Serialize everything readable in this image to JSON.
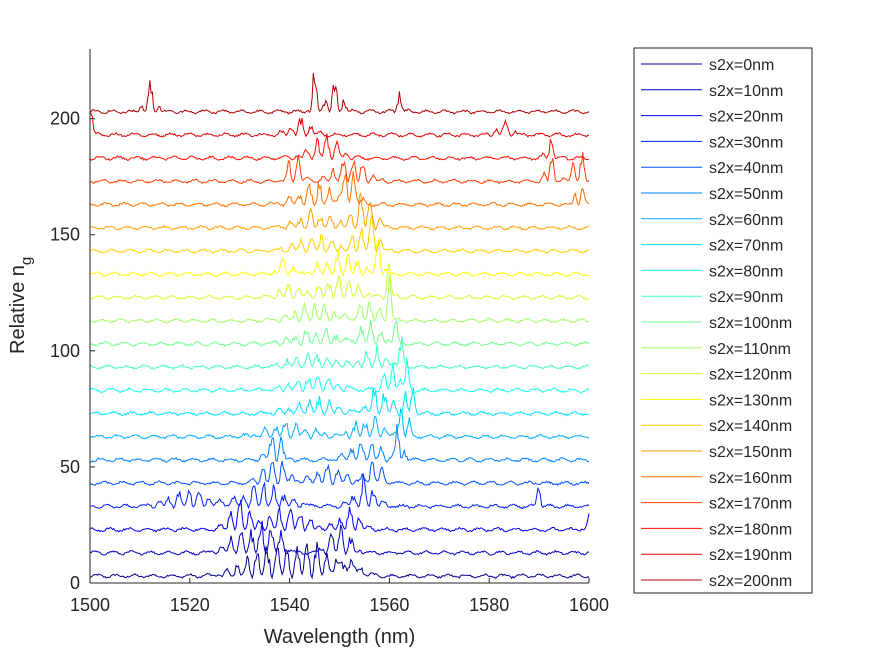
{
  "chart_data": {
    "type": "line",
    "title": "",
    "xlabel": "Wavelength (nm)",
    "ylabel_main": "Relative n",
    "ylabel_sub": "g",
    "xlim": [
      1500,
      1600
    ],
    "ylim": [
      0,
      230
    ],
    "xticks": [
      1500,
      1520,
      1540,
      1560,
      1580,
      1600
    ],
    "yticks": [
      0,
      50,
      100,
      150,
      200
    ],
    "grid": false,
    "legend_position": "outside-right",
    "series": [
      {
        "name": "s2x=0nm",
        "color": "#00008f",
        "baseline": 3,
        "features": [
          [
            1535,
            10,
            6
          ],
          [
            1545,
            12,
            6
          ],
          [
            1552,
            6,
            3
          ]
        ]
      },
      {
        "name": "s2x=10nm",
        "color": "#0000bf",
        "baseline": 13,
        "features": [
          [
            1530,
            8,
            4
          ],
          [
            1536,
            12,
            3
          ],
          [
            1550,
            10,
            3
          ]
        ]
      },
      {
        "name": "s2x=20nm",
        "color": "#0000ef",
        "baseline": 23,
        "features": [
          [
            1530,
            10,
            3
          ],
          [
            1540,
            9,
            5
          ],
          [
            1552,
            8,
            3
          ],
          [
            1600,
            5,
            1
          ]
        ]
      },
      {
        "name": "s2x=30nm",
        "color": "#0020ff",
        "baseline": 33,
        "features": [
          [
            1520,
            6,
            6
          ],
          [
            1535,
            8,
            6
          ],
          [
            1555,
            10,
            3
          ],
          [
            1590,
            8,
            0.6
          ]
        ]
      },
      {
        "name": "s2x=40nm",
        "color": "#0050ff",
        "baseline": 43,
        "features": [
          [
            1537,
            10,
            3
          ],
          [
            1548,
            6,
            5
          ],
          [
            1557,
            10,
            2
          ]
        ]
      },
      {
        "name": "s2x=50nm",
        "color": "#0080ff",
        "baseline": 53,
        "features": [
          [
            1537,
            12,
            2
          ],
          [
            1555,
            8,
            4
          ],
          [
            1562,
            18,
            1
          ]
        ]
      },
      {
        "name": "s2x=60nm",
        "color": "#00b0ff",
        "baseline": 63,
        "features": [
          [
            1540,
            6,
            6
          ],
          [
            1556,
            8,
            4
          ],
          [
            1563,
            20,
            1
          ]
        ]
      },
      {
        "name": "s2x=70nm",
        "color": "#00dfff",
        "baseline": 73,
        "features": [
          [
            1545,
            6,
            6
          ],
          [
            1558,
            10,
            3
          ],
          [
            1564,
            20,
            1
          ]
        ]
      },
      {
        "name": "s2x=80nm",
        "color": "#10ffef",
        "baseline": 83,
        "features": [
          [
            1545,
            6,
            6
          ],
          [
            1560,
            10,
            2
          ],
          [
            1563,
            14,
            1
          ]
        ]
      },
      {
        "name": "s2x=90nm",
        "color": "#40ffbf",
        "baseline": 93,
        "features": [
          [
            1545,
            6,
            6
          ],
          [
            1557,
            8,
            3
          ],
          [
            1562,
            12,
            1
          ]
        ]
      },
      {
        "name": "s2x=100nm",
        "color": "#70ff8f",
        "baseline": 103,
        "features": [
          [
            1545,
            6,
            6
          ],
          [
            1556,
            8,
            3
          ],
          [
            1561,
            12,
            1
          ]
        ]
      },
      {
        "name": "s2x=110nm",
        "color": "#a0ff60",
        "baseline": 113,
        "features": [
          [
            1545,
            6,
            6
          ],
          [
            1556,
            8,
            3
          ],
          [
            1560,
            14,
            1
          ]
        ]
      },
      {
        "name": "s2x=120nm",
        "color": "#cfff30",
        "baseline": 123,
        "features": [
          [
            1540,
            5,
            3
          ],
          [
            1550,
            8,
            5
          ],
          [
            1560,
            14,
            1
          ]
        ]
      },
      {
        "name": "s2x=130nm",
        "color": "#ffff00",
        "baseline": 133,
        "features": [
          [
            1539,
            6,
            2
          ],
          [
            1550,
            8,
            5
          ],
          [
            1558,
            14,
            1
          ]
        ]
      },
      {
        "name": "s2x=140nm",
        "color": "#ffcf00",
        "baseline": 143,
        "features": [
          [
            1545,
            6,
            5
          ],
          [
            1555,
            10,
            3
          ],
          [
            1557,
            10,
            1
          ]
        ]
      },
      {
        "name": "s2x=150nm",
        "color": "#ffa000",
        "baseline": 153,
        "features": [
          [
            1545,
            6,
            5
          ],
          [
            1555,
            10,
            3
          ],
          [
            1555,
            8,
            1
          ]
        ]
      },
      {
        "name": "s2x=160nm",
        "color": "#ff7000",
        "baseline": 163,
        "features": [
          [
            1545,
            8,
            5
          ],
          [
            1552,
            14,
            2
          ],
          [
            1598,
            10,
            1
          ]
        ]
      },
      {
        "name": "s2x=170nm",
        "color": "#ff4000",
        "baseline": 173,
        "features": [
          [
            1541,
            10,
            2
          ],
          [
            1552,
            10,
            4
          ],
          [
            1592,
            14,
            1
          ],
          [
            1598,
            10,
            2
          ]
        ]
      },
      {
        "name": "s2x=180nm",
        "color": "#ff1000",
        "baseline": 183,
        "features": [
          [
            1547,
            8,
            4
          ],
          [
            1592,
            8,
            1
          ]
        ]
      },
      {
        "name": "s2x=190nm",
        "color": "#df0000",
        "baseline": 193,
        "features": [
          [
            1500,
            10,
            1
          ],
          [
            1542,
            6,
            3
          ],
          [
            1583,
            6,
            2
          ]
        ]
      },
      {
        "name": "s2x=200nm",
        "color": "#af0000",
        "baseline": 203,
        "features": [
          [
            1512,
            12,
            1.5
          ],
          [
            1545,
            18,
            1
          ],
          [
            1549,
            12,
            2
          ],
          [
            1562,
            8,
            1
          ]
        ]
      }
    ]
  }
}
